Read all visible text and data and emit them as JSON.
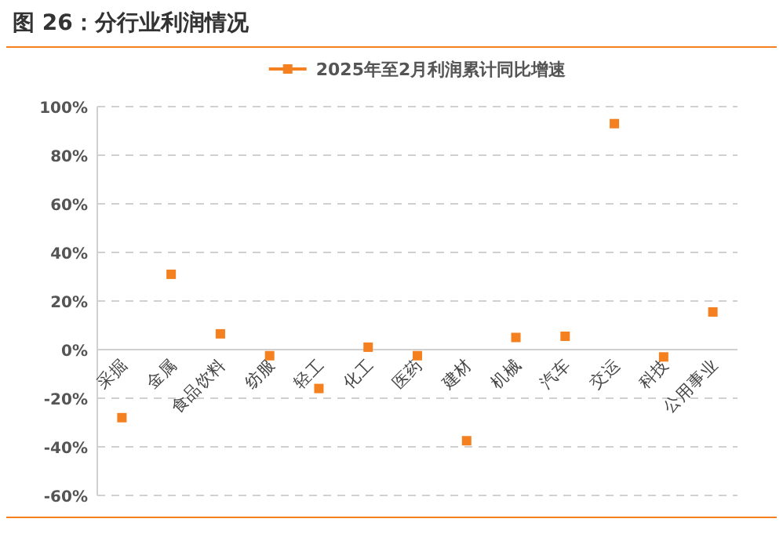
{
  "chart_data": {
    "type": "scatter",
    "title": "图 26：分行业利润情况",
    "categories": [
      "采掘",
      "金属",
      "食品饮料",
      "纺服",
      "轻工",
      "化工",
      "医药",
      "建材",
      "机械",
      "汽车",
      "交运",
      "科技",
      "公用事业"
    ],
    "series": [
      {
        "name": "2025年至2月利润累计同比增速",
        "color": "#f4801f",
        "values": [
          -28,
          31,
          6.5,
          -2.5,
          -16,
          1,
          -2.5,
          -37.5,
          5,
          5.5,
          93,
          -3,
          15.5
        ]
      }
    ],
    "ylim": [
      -60,
      100
    ],
    "yticks": [
      {
        "value": -60,
        "label": "-60%"
      },
      {
        "value": -40,
        "label": "-40%"
      },
      {
        "value": -20,
        "label": "-20%"
      },
      {
        "value": 0,
        "label": "0%"
      },
      {
        "value": 20,
        "label": "20%"
      },
      {
        "value": 40,
        "label": "40%"
      },
      {
        "value": 60,
        "label": "60%"
      },
      {
        "value": 80,
        "label": "80%"
      },
      {
        "value": 100,
        "label": "100%"
      }
    ],
    "grid": "y",
    "legend": "top",
    "marker": "square"
  }
}
